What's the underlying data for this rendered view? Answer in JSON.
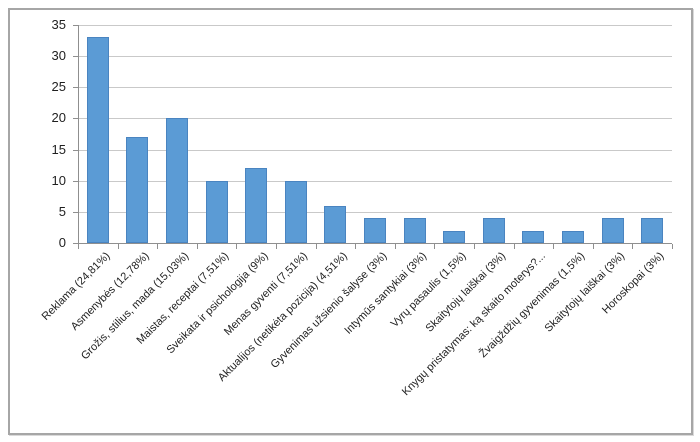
{
  "chart_data": {
    "type": "bar",
    "title": "",
    "xlabel": "",
    "ylabel": "",
    "categories": [
      "Reklama (24,81%)",
      "Asmenybės (12,78%)",
      "Grožis, stilius, mada (15,03%)",
      "Maistas, receptai (7,51%)",
      "Sveikata ir psichologija (9%)",
      "Menas gyventi (7,51%)",
      "Aktualijos (netikėta pozicija) (4,51%)",
      "Gyvenimas užsienio šalyse (3%)",
      "Intymūs santykiai (3%)",
      "Vyrų pasaulis (1,5%)",
      "Skaitytojų laiškai (3%)",
      "Knygų pristatymas: ką skaito moterys?...",
      "Žvaigždžių gyvenimas (1,5%)",
      "Skaitytojų laiškai (3%)",
      "Horoskopai (3%)"
    ],
    "values": [
      33,
      17,
      20,
      10,
      12,
      10,
      6,
      4,
      4,
      2,
      4,
      2,
      2,
      4,
      4
    ],
    "ylim": [
      0,
      35
    ],
    "yticks": [
      0,
      5,
      10,
      15,
      20,
      25,
      30,
      35
    ],
    "grid": true,
    "legend": false,
    "colors": {
      "bar_fill": "#5B9BD5",
      "bar_border": "#4A84C0",
      "gridline": "#C9C9C9",
      "axis": "#8F8F8F",
      "text": "#1F1F1F",
      "frame_border": "#A6A6A6"
    }
  }
}
